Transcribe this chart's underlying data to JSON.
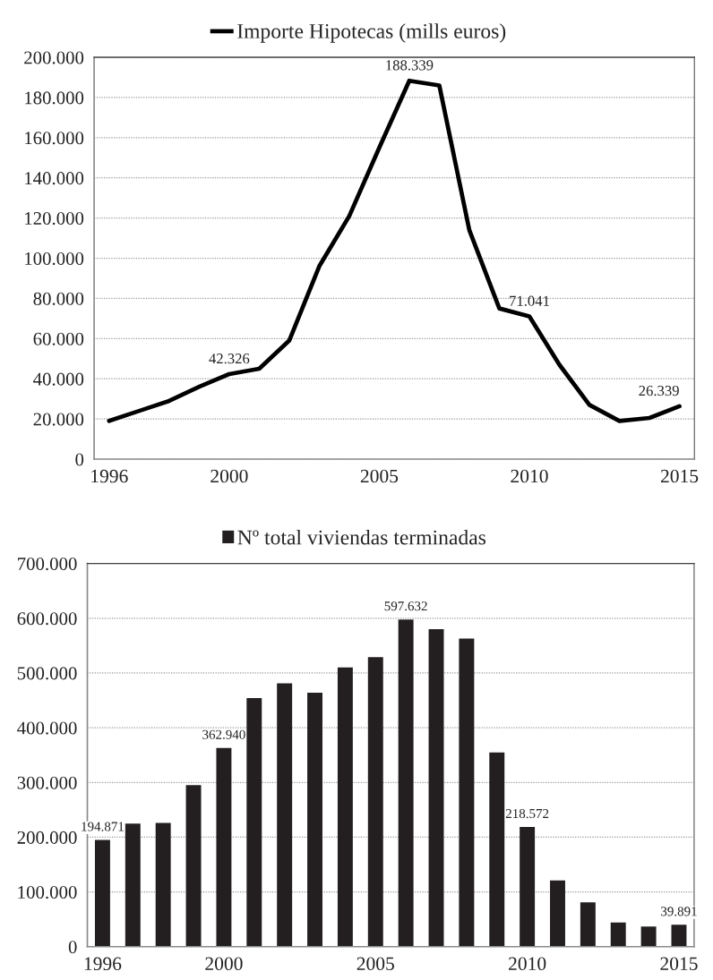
{
  "chart_data": [
    {
      "type": "line",
      "categories": [
        "1996",
        null,
        null,
        null,
        "2000",
        null,
        null,
        null,
        null,
        "2005",
        null,
        null,
        null,
        null,
        "2010",
        null,
        null,
        null,
        null,
        "2015"
      ],
      "series": [
        {
          "name": "Importe Hipotecas (mills euros)",
          "color": "#000000",
          "values": [
            19000,
            24000,
            29000,
            36000,
            42326,
            45000,
            59000,
            96000,
            121000,
            155000,
            188339,
            186000,
            114000,
            75000,
            71041,
            47000,
            27000,
            19000,
            20500,
            26339
          ],
          "value_labels": [
            null,
            null,
            null,
            null,
            "42.326",
            null,
            null,
            null,
            null,
            null,
            "188.339",
            null,
            null,
            null,
            "71.041",
            null,
            null,
            null,
            null,
            "26.339"
          ]
        }
      ],
      "ylim": [
        0,
        200000
      ],
      "yticks": [
        0,
        {
          "value": 20000,
          "label": "20.000"
        },
        {
          "value": 40000,
          "label": "40.000"
        },
        {
          "value": 60000,
          "label": "60.000"
        },
        {
          "value": 80000,
          "label": "80.000"
        },
        {
          "value": 100000,
          "label": "100.000"
        },
        {
          "value": 120000,
          "label": "120.000"
        },
        {
          "value": 140000,
          "label": "140.000"
        },
        {
          "value": 160000,
          "label": "160.000"
        },
        {
          "value": 180000,
          "label": "180.000"
        },
        {
          "value": 200000,
          "label": "200.000"
        }
      ],
      "grid": "y",
      "legend": "top",
      "line_style": "solid"
    },
    {
      "type": "bar",
      "categories": [
        "1996",
        null,
        null,
        null,
        "2000",
        null,
        null,
        null,
        null,
        "2005",
        null,
        null,
        null,
        null,
        "2010",
        null,
        null,
        null,
        null,
        "2015"
      ],
      "series": [
        {
          "name": "Nº total viviendas terminadas",
          "color": "#231f20",
          "values": [
            194871,
            225000,
            226000,
            295000,
            362940,
            454000,
            481000,
            464000,
            510000,
            529000,
            597632,
            580000,
            563000,
            355000,
            218572,
            121000,
            81000,
            44000,
            37000,
            39891
          ],
          "value_labels": [
            "194.871",
            null,
            null,
            null,
            "362.940",
            null,
            null,
            null,
            null,
            null,
            "597.632",
            null,
            null,
            null,
            "218.572",
            null,
            null,
            null,
            null,
            "39.891"
          ]
        }
      ],
      "ylim": [
        0,
        700000
      ],
      "yticks": [
        0,
        {
          "value": 100000,
          "label": "100.000"
        },
        {
          "value": 200000,
          "label": "200.000"
        },
        {
          "value": 300000,
          "label": "300.000"
        },
        {
          "value": 400000,
          "label": "400.000"
        },
        {
          "value": 500000,
          "label": "500.000"
        },
        {
          "value": 600000,
          "label": "600.000"
        },
        {
          "value": 700000,
          "label": "700.000"
        }
      ],
      "grid": "y",
      "legend": "top"
    }
  ]
}
